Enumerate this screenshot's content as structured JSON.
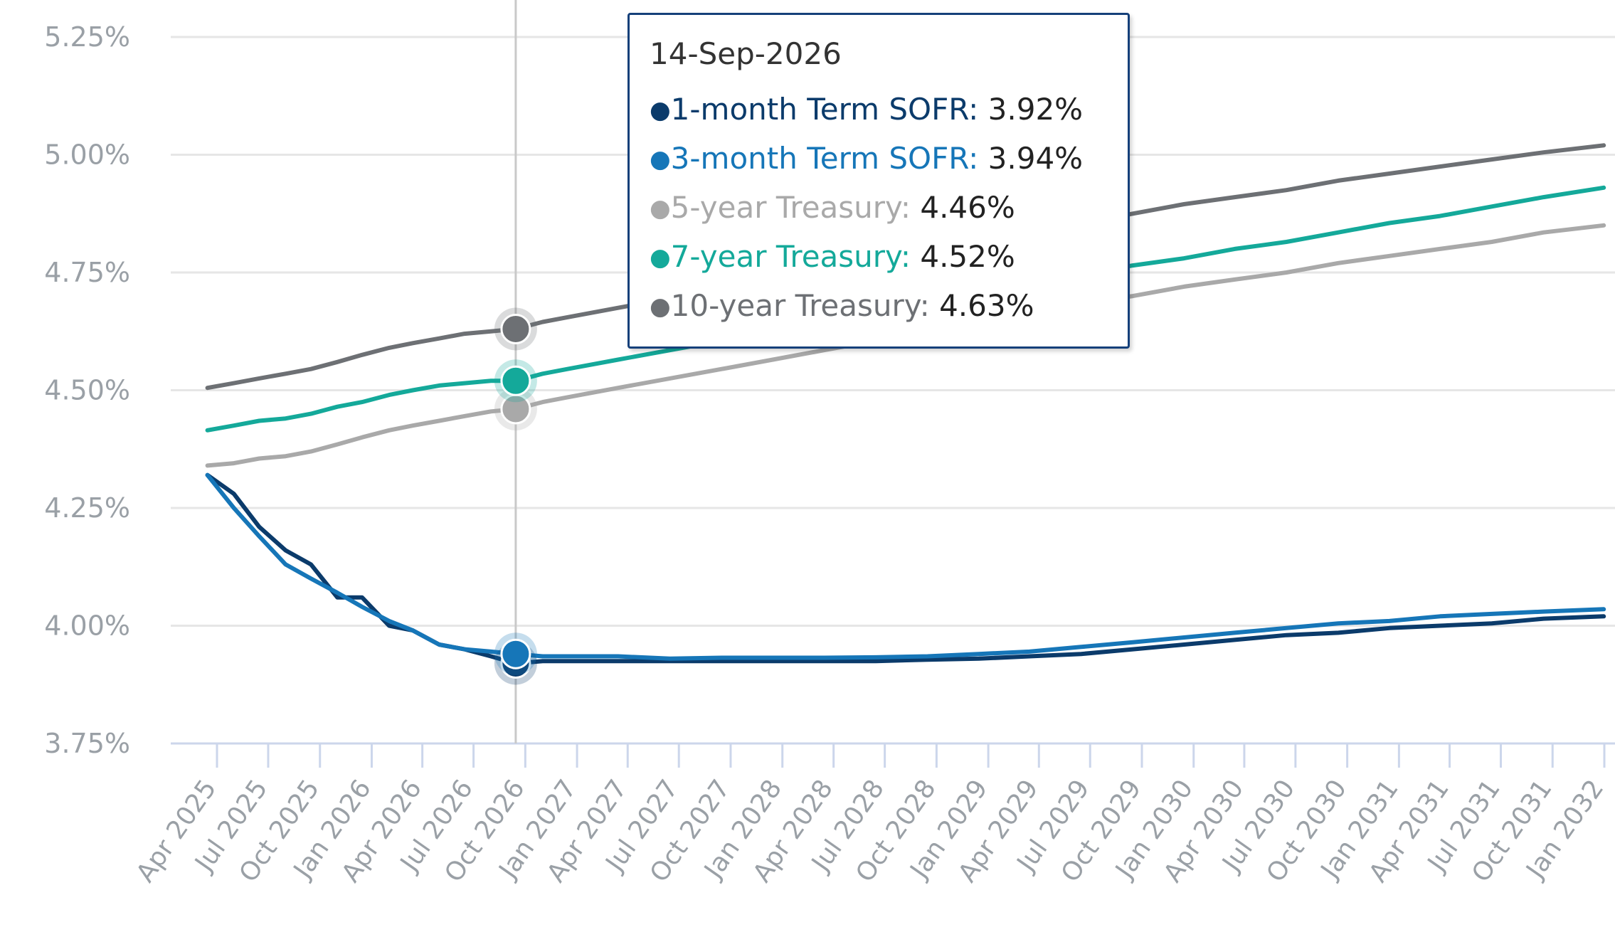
{
  "chart_data": {
    "type": "line",
    "title": "",
    "xlabel": "",
    "ylabel": "",
    "ylim": [
      3.75,
      5.25
    ],
    "y_ticks": [
      "3.75%",
      "4.00%",
      "4.25%",
      "4.50%",
      "4.75%",
      "5.00%",
      "5.25%"
    ],
    "x_ticks": [
      "Apr 2025",
      "Jul 2025",
      "Oct 2025",
      "Jan 2026",
      "Apr 2026",
      "Jul 2026",
      "Oct 2026",
      "Jan 2027",
      "Apr 2027",
      "Jul 2027",
      "Oct 2027",
      "Jan 2028",
      "Apr 2028",
      "Jul 2028",
      "Oct 2028",
      "Jan 2029",
      "Apr 2029",
      "Jul 2029",
      "Oct 2029",
      "Jan 2030",
      "Apr 2030",
      "Jul 2030",
      "Oct 2030",
      "Jan 2031",
      "Apr 2031",
      "Jul 2031",
      "Oct 2031",
      "Jan 2032"
    ],
    "grid": true,
    "legend": "none",
    "x": [
      "2025-03-15",
      "2025-05-01",
      "2025-06-15",
      "2025-08-01",
      "2025-09-15",
      "2025-11-01",
      "2025-12-15",
      "2026-02-01",
      "2026-03-15",
      "2026-05-01",
      "2026-06-15",
      "2026-08-01",
      "2026-09-14",
      "2026-11-01",
      "2026-12-15",
      "2027-03-15",
      "2027-06-15",
      "2027-09-15",
      "2027-12-15",
      "2028-03-15",
      "2028-06-15",
      "2028-09-15",
      "2028-12-15",
      "2029-03-15",
      "2029-06-15",
      "2029-09-15",
      "2029-12-15",
      "2030-03-15",
      "2030-06-15",
      "2030-09-15",
      "2030-12-15",
      "2031-03-15",
      "2031-06-15",
      "2031-09-15",
      "2031-12-31"
    ],
    "series": [
      {
        "name": "1-month Term SOFR",
        "color": "#0b3b6b",
        "values": [
          4.32,
          4.28,
          4.21,
          4.16,
          4.13,
          4.06,
          4.06,
          4.0,
          3.99,
          3.96,
          3.95,
          3.935,
          3.92,
          3.925,
          3.925,
          3.925,
          3.925,
          3.925,
          3.925,
          3.925,
          3.925,
          3.928,
          3.93,
          3.935,
          3.94,
          3.95,
          3.96,
          3.97,
          3.98,
          3.985,
          3.995,
          4.0,
          4.005,
          4.015,
          4.02
        ]
      },
      {
        "name": "3-month Term SOFR",
        "color": "#1676b8",
        "values": [
          4.32,
          4.25,
          4.19,
          4.13,
          4.1,
          4.07,
          4.04,
          4.01,
          3.99,
          3.96,
          3.95,
          3.945,
          3.94,
          3.935,
          3.935,
          3.935,
          3.93,
          3.932,
          3.932,
          3.932,
          3.933,
          3.935,
          3.94,
          3.945,
          3.955,
          3.965,
          3.975,
          3.985,
          3.995,
          4.005,
          4.01,
          4.02,
          4.025,
          4.03,
          4.035
        ]
      },
      {
        "name": "5-year Treasury",
        "color": "#a9a9a9",
        "values": [
          4.34,
          4.345,
          4.355,
          4.36,
          4.37,
          4.385,
          4.4,
          4.415,
          4.425,
          4.435,
          4.445,
          4.455,
          4.46,
          4.475,
          4.485,
          4.505,
          4.525,
          4.545,
          4.565,
          4.585,
          4.605,
          4.625,
          4.645,
          4.665,
          4.685,
          4.7,
          4.72,
          4.735,
          4.75,
          4.77,
          4.785,
          4.8,
          4.815,
          4.835,
          4.85
        ]
      },
      {
        "name": "7-year Treasury",
        "color": "#14a99a",
        "values": [
          4.415,
          4.425,
          4.435,
          4.44,
          4.45,
          4.465,
          4.475,
          4.49,
          4.5,
          4.51,
          4.515,
          4.52,
          4.52,
          4.535,
          4.545,
          4.565,
          4.585,
          4.605,
          4.625,
          4.645,
          4.665,
          4.685,
          4.705,
          4.725,
          4.745,
          4.765,
          4.78,
          4.8,
          4.815,
          4.835,
          4.855,
          4.87,
          4.89,
          4.91,
          4.93
        ]
      },
      {
        "name": "10-year Treasury",
        "color": "#6d7074",
        "values": [
          4.505,
          4.515,
          4.525,
          4.535,
          4.545,
          4.56,
          4.575,
          4.59,
          4.6,
          4.61,
          4.62,
          4.625,
          4.63,
          4.645,
          4.655,
          4.675,
          4.695,
          4.715,
          4.735,
          4.755,
          4.775,
          4.795,
          4.815,
          4.835,
          4.855,
          4.875,
          4.895,
          4.91,
          4.925,
          4.945,
          4.96,
          4.975,
          4.99,
          5.005,
          5.02
        ]
      }
    ],
    "highlight": {
      "date": "14-Sep-2026",
      "index": 12
    }
  },
  "tooltip": {
    "date": "14-Sep-2026",
    "rows": [
      {
        "label": "1-month Term SOFR",
        "sep": ":",
        "value": "3.92%",
        "color": "#0b3b6b"
      },
      {
        "label": "3-month Term SOFR",
        "sep": ":",
        "value": "3.94%",
        "color": "#1676b8"
      },
      {
        "label": "5-year Treasury",
        "sep": ":",
        "value": "4.46%",
        "color": "#a9a9a9"
      },
      {
        "label": "7-year Treasury",
        "sep": ":",
        "value": "4.52%",
        "color": "#14a99a"
      },
      {
        "label": "10-year Treasury",
        "sep": ":",
        "value": "4.63%",
        "color": "#6d7074"
      }
    ]
  }
}
